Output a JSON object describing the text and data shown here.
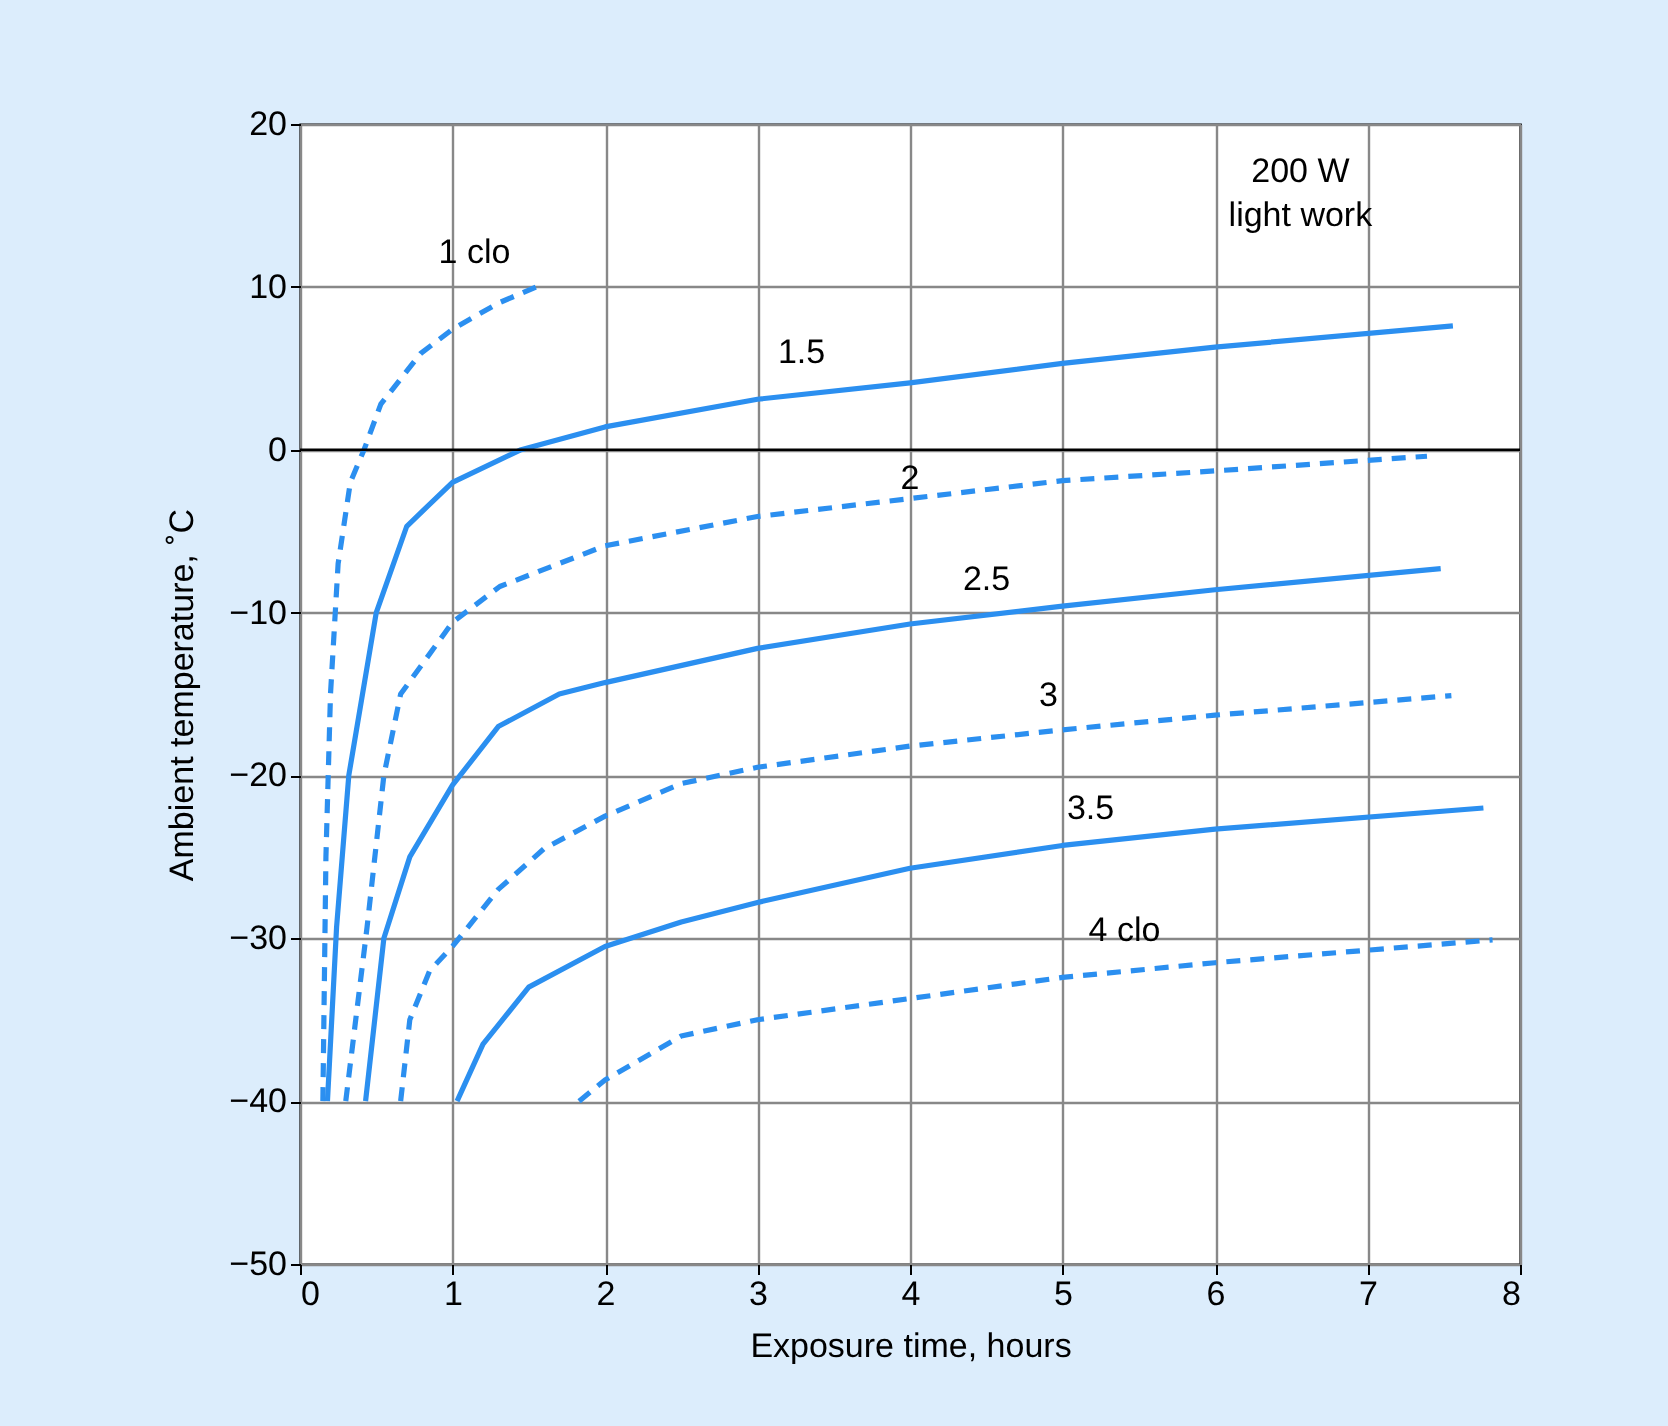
{
  "chart_data": {
    "type": "line",
    "xlabel": "Exposure time, hours",
    "ylabel": "Ambient temperature, ˚C",
    "xlim": [
      0,
      8
    ],
    "xticks": [
      0,
      1,
      2,
      3,
      4,
      5,
      6,
      7,
      8
    ],
    "ylim": [
      -50,
      20
    ],
    "yticks": [
      -50,
      -40,
      -30,
      -20,
      -10,
      0,
      10,
      20
    ],
    "grid": true,
    "ref_lines": [
      {
        "axis": "y",
        "value": 0,
        "color": "#000000"
      }
    ],
    "annotations": [
      {
        "text": "200 W\nlight work"
      }
    ],
    "series": [
      {
        "name": "1 clo",
        "color": "#2b8ff0",
        "line_style": "dashed",
        "x": [
          0.15,
          0.17,
          0.2,
          0.25,
          0.33,
          0.42,
          0.53,
          0.79,
          1.0,
          1.3,
          1.6
        ],
        "values": [
          -40,
          -25,
          -15,
          -7,
          -2,
          0,
          2.8,
          5.9,
          7.4,
          9,
          10.2
        ]
      },
      {
        "name": "1.5",
        "color": "#2b8ff0",
        "line_style": "solid",
        "x": [
          0.18,
          0.24,
          0.32,
          0.5,
          0.7,
          1.0,
          1.45,
          2.0,
          3.0,
          4.0,
          5.0,
          6.0,
          7.56
        ],
        "values": [
          -40,
          -29.3,
          -20,
          -10,
          -4.7,
          -2,
          0,
          1.4,
          3.1,
          4.1,
          5.3,
          6.3,
          7.6
        ]
      },
      {
        "name": "2",
        "color": "#2b8ff0",
        "line_style": "dashed",
        "x": [
          0.3,
          0.44,
          0.55,
          0.66,
          1.0,
          1.31,
          2.0,
          3.0,
          4.0,
          5.0,
          6.0,
          7.39
        ],
        "values": [
          -40,
          -29.3,
          -20,
          -15,
          -10.6,
          -8.4,
          -5.9,
          -4.1,
          -3,
          -1.9,
          -1.3,
          -0.4
        ]
      },
      {
        "name": "2.5",
        "color": "#2b8ff0",
        "line_style": "solid",
        "x": [
          0.43,
          0.55,
          0.72,
          1.0,
          1.3,
          1.7,
          2.0,
          3.0,
          4.0,
          5.0,
          6.0,
          7.48
        ],
        "values": [
          -40,
          -30,
          -25,
          -20.6,
          -17,
          -15,
          -14.3,
          -12.2,
          -10.7,
          -9.6,
          -8.6,
          -7.3
        ]
      },
      {
        "name": "3",
        "color": "#2b8ff0",
        "line_style": "dashed",
        "x": [
          0.66,
          0.72,
          0.85,
          1.0,
          1.3,
          1.6,
          2.0,
          2.5,
          3.0,
          4.0,
          5.0,
          6.0,
          7.55
        ],
        "values": [
          -40,
          -35,
          -32,
          -30.5,
          -27,
          -24.5,
          -22.5,
          -20.5,
          -19.5,
          -18.2,
          -17.2,
          -16.3,
          -15.1
        ]
      },
      {
        "name": "3.5",
        "color": "#2b8ff0",
        "line_style": "solid",
        "x": [
          1.03,
          1.2,
          1.5,
          2.0,
          2.5,
          3.0,
          4.0,
          5.0,
          6.0,
          7.76
        ],
        "values": [
          -40,
          -36.5,
          -33,
          -30.5,
          -29,
          -27.8,
          -25.7,
          -24.3,
          -23.3,
          -22
        ]
      },
      {
        "name": "4 clo",
        "color": "#2b8ff0",
        "line_style": "dashed",
        "x": [
          1.83,
          2.0,
          2.5,
          3.0,
          4.0,
          5.0,
          6.0,
          7.82
        ],
        "values": [
          -40,
          -38.7,
          -36,
          -35,
          -33.7,
          -32.4,
          -31.5,
          -30.1
        ]
      }
    ]
  }
}
